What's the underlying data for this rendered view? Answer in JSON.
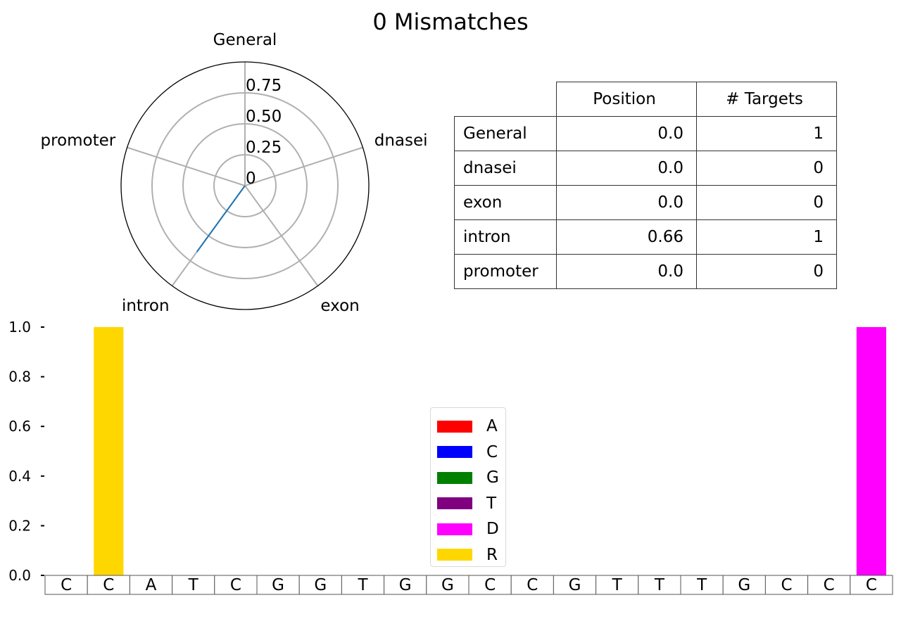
{
  "title": "0 Mismatches",
  "chart_data": [
    {
      "type": "radar",
      "categories": [
        "General",
        "dnasei",
        "exon",
        "intron",
        "promoter"
      ],
      "values": [
        0.0,
        0.0,
        0.0,
        0.66,
        0.0
      ],
      "rticks": [
        "0",
        "0.25",
        "0.50",
        "0.75"
      ],
      "rtick_values": [
        0,
        0.25,
        0.5,
        0.75
      ],
      "rlim": [
        0,
        1.0
      ],
      "line_color": "#1f77b4",
      "grid": true
    },
    {
      "type": "table",
      "columns": [
        "Position",
        "# Targets"
      ],
      "rows": [
        {
          "label": "General",
          "position": "0.0",
          "targets": "1"
        },
        {
          "label": "dnasei",
          "position": "0.0",
          "targets": "0"
        },
        {
          "label": "exon",
          "position": "0.0",
          "targets": "0"
        },
        {
          "label": "intron",
          "position": "0.66",
          "targets": "1"
        },
        {
          "label": "promoter",
          "position": "0.0",
          "targets": "0"
        }
      ]
    },
    {
      "type": "bar",
      "categories": [
        "C",
        "C",
        "A",
        "T",
        "C",
        "G",
        "G",
        "T",
        "G",
        "G",
        "C",
        "C",
        "G",
        "T",
        "T",
        "T",
        "G",
        "C",
        "C",
        "C"
      ],
      "series": [
        {
          "name": "A",
          "color": "#ff0000",
          "values": [
            0,
            0,
            0,
            0,
            0,
            0,
            0,
            0,
            0,
            0,
            0,
            0,
            0,
            0,
            0,
            0,
            0,
            0,
            0,
            0
          ]
        },
        {
          "name": "C",
          "color": "#0000ff",
          "values": [
            0,
            0,
            0,
            0,
            0,
            0,
            0,
            0,
            0,
            0,
            0,
            0,
            0,
            0,
            0,
            0,
            0,
            0,
            0,
            0
          ]
        },
        {
          "name": "G",
          "color": "#008000",
          "values": [
            0,
            0,
            0,
            0,
            0,
            0,
            0,
            0,
            0,
            0,
            0,
            0,
            0,
            0,
            0,
            0,
            0,
            0,
            0,
            0
          ]
        },
        {
          "name": "T",
          "color": "#800080",
          "values": [
            0,
            0,
            0,
            0,
            0,
            0,
            0,
            0,
            0,
            0,
            0,
            0,
            0,
            0,
            0,
            0,
            0,
            0,
            0,
            0
          ]
        },
        {
          "name": "D",
          "color": "#ff00ff",
          "values": [
            0,
            0,
            0,
            0,
            0,
            0,
            0,
            0,
            0,
            0,
            0,
            0,
            0,
            0,
            0,
            0,
            0,
            0,
            0,
            1.0
          ]
        },
        {
          "name": "R",
          "color": "#ffd700",
          "values": [
            0,
            1.0,
            0,
            0,
            0,
            0,
            0,
            0,
            0,
            0,
            0,
            0,
            0,
            0,
            0,
            0,
            0,
            0,
            0,
            0
          ]
        }
      ],
      "ylim": [
        0,
        1.0
      ],
      "yticks": [
        "0.0",
        "0.2",
        "0.4",
        "0.6",
        "0.8",
        "1.0"
      ],
      "legend_placement": "center-bottom"
    }
  ]
}
